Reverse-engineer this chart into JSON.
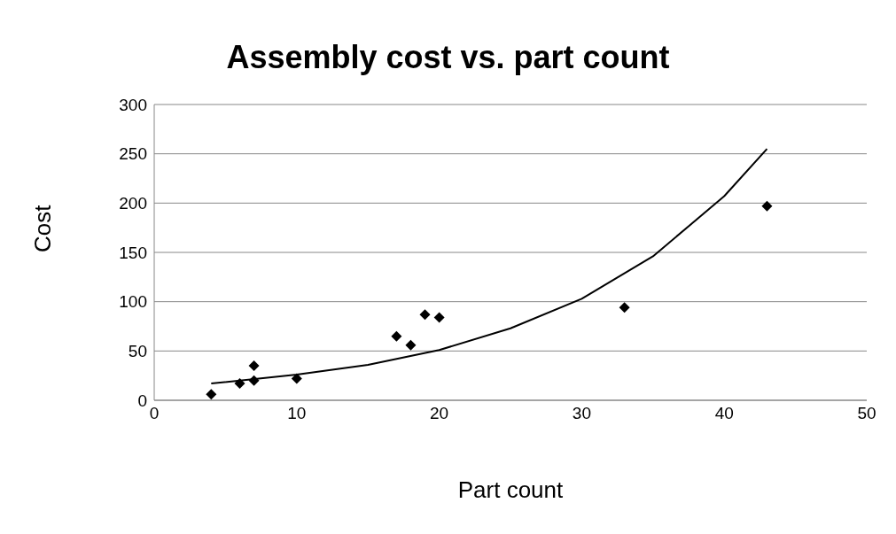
{
  "chart_data": {
    "type": "scatter",
    "title": "Assembly cost vs. part count",
    "xlabel": "Part count",
    "ylabel": "Cost",
    "xlim": [
      0,
      50
    ],
    "xticks": [
      0,
      10,
      20,
      30,
      40,
      50
    ],
    "ylim": [
      0,
      300
    ],
    "yticks": [
      0,
      50,
      100,
      150,
      200,
      250,
      300
    ],
    "grid": "y",
    "series": [
      {
        "color": "#000000",
        "marker": "diamond",
        "x": [
          4,
          6,
          7,
          7,
          10,
          17,
          18,
          19,
          20,
          33,
          43
        ],
        "values": [
          6,
          17,
          20,
          35,
          22,
          65,
          56,
          87,
          84,
          94,
          197
        ]
      },
      {
        "type": "line",
        "color": "#000000",
        "marker": "none",
        "x": [
          4,
          10,
          15,
          20,
          25,
          30,
          35,
          40,
          43
        ],
        "values": [
          17,
          26,
          36,
          51,
          73,
          103,
          146,
          207,
          255
        ]
      }
    ]
  }
}
